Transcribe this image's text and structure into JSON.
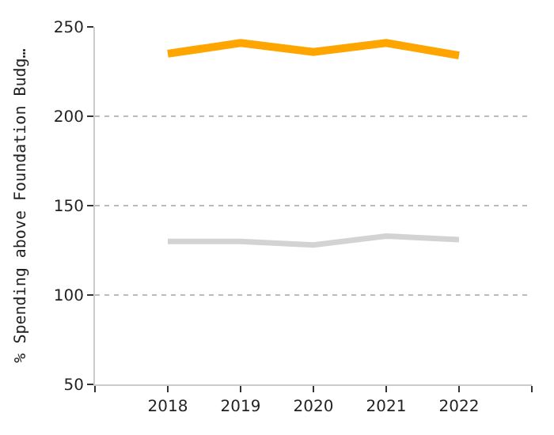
{
  "chart_data": {
    "type": "line",
    "ylabel": "% Spending above Foundation Budg…",
    "x": [
      2018,
      2019,
      2020,
      2021,
      2022
    ],
    "series": [
      {
        "color": "#ffa500",
        "values": [
          235,
          241,
          236,
          241,
          234
        ]
      },
      {
        "color": "#d3d3d3",
        "values": [
          130,
          130,
          128,
          133,
          131
        ]
      }
    ],
    "xlim": [
      2017,
      2023
    ],
    "xticks": [
      {
        "value": 2017,
        "label": null
      },
      2018,
      2019,
      2020,
      2021,
      2022,
      {
        "value": 2023,
        "label": null
      }
    ],
    "ylim": [
      50,
      250
    ],
    "yticks": [
      50,
      100,
      150,
      200,
      250
    ],
    "grid": "y",
    "marker": "none",
    "line_style": "solid"
  }
}
